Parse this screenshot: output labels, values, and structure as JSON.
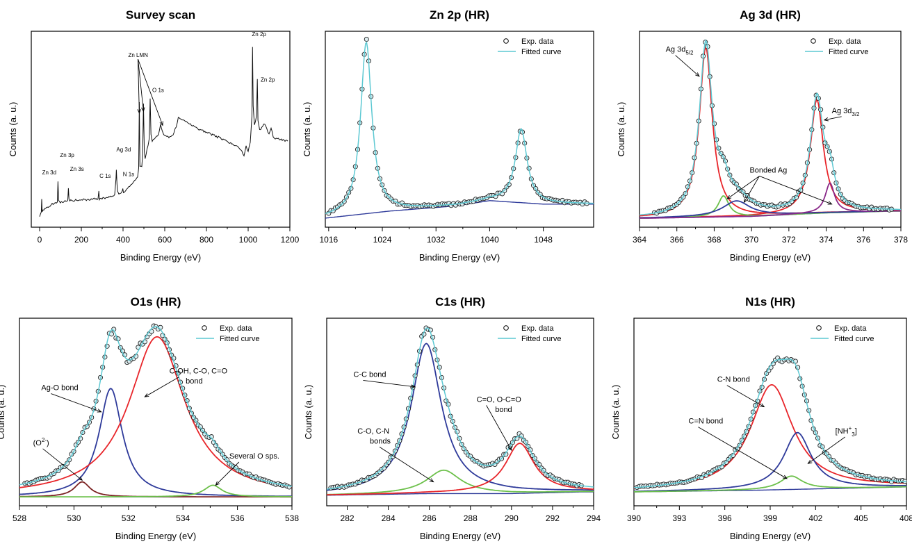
{
  "legend": {
    "exp": "Exp. data",
    "fit": "Fitted curve"
  },
  "colors": {
    "fit": "#5cc8d2",
    "red": "#e8252a",
    "blue": "#2e3a9a",
    "green": "#6cc04a",
    "purple": "#8a2a8a",
    "brown": "#7a2020",
    "marker": "#222222",
    "marker_fill": "#dfeff2"
  },
  "chart_data": [
    {
      "type": "line",
      "title": "Survey scan",
      "xlabel": "Binding Energy (eV)",
      "ylabel": "Counts (a. u.)",
      "xlim": [
        -40,
        1200
      ],
      "xticks": [
        0,
        200,
        400,
        600,
        800,
        1000,
        1200
      ],
      "legend": false,
      "series": [
        {
          "x": [
            0,
            8,
            10,
            12,
            20,
            60,
            85,
            88,
            91,
            95,
            135,
            138,
            141,
            145,
            280,
            284,
            287,
            290,
            360,
            366,
            368,
            371,
            374,
            380,
            396,
            399,
            402,
            408,
            470,
            475,
            478,
            481,
            490,
            494,
            498,
            502,
            506,
            520,
            526,
            530,
            534,
            540,
            570,
            580,
            588,
            595,
            620,
            640,
            655,
            665,
            700,
            760,
            820,
            880,
            930,
            960,
            980,
            990,
            1000,
            1010,
            1018,
            1021,
            1024,
            1030,
            1040,
            1044,
            1047,
            1055,
            1080,
            1100,
            1110,
            1120,
            1150,
            1190
          ],
          "y": [
            0.03,
            0.06,
            0.13,
            0.06,
            0.07,
            0.1,
            0.11,
            0.23,
            0.12,
            0.11,
            0.12,
            0.19,
            0.13,
            0.12,
            0.13,
            0.17,
            0.13,
            0.13,
            0.15,
            0.24,
            0.3,
            0.22,
            0.17,
            0.16,
            0.17,
            0.19,
            0.17,
            0.17,
            0.25,
            0.3,
            0.68,
            0.32,
            0.32,
            0.38,
            0.68,
            0.4,
            0.36,
            0.44,
            0.48,
            0.7,
            0.5,
            0.46,
            0.5,
            0.56,
            0.52,
            0.5,
            0.48,
            0.5,
            0.54,
            0.6,
            0.57,
            0.53,
            0.5,
            0.47,
            0.44,
            0.42,
            0.38,
            0.43,
            0.4,
            0.45,
            0.6,
            1.0,
            0.66,
            0.55,
            0.6,
            0.82,
            0.58,
            0.52,
            0.56,
            0.5,
            0.54,
            0.48,
            0.47,
            0.46
          ]
        }
      ],
      "annotations": [
        {
          "text": "Zn 3d",
          "x": 12,
          "y": 0.27,
          "marks": []
        },
        {
          "text": "Zn 3p",
          "x": 98,
          "y": 0.37,
          "marks": []
        },
        {
          "text": "Zn 3s",
          "x": 146,
          "y": 0.29,
          "marks": []
        },
        {
          "text": "C 1s",
          "x": 287,
          "y": 0.25,
          "marks": []
        },
        {
          "text": "Ag 3d",
          "x": 368,
          "y": 0.4,
          "marks": []
        },
        {
          "text": "N 1s",
          "x": 399,
          "y": 0.26,
          "marks": []
        },
        {
          "text": "Zn LMN",
          "x": 425,
          "y": 0.94,
          "marks": [
            [
              478,
              0.62
            ],
            [
              498,
              0.63
            ],
            [
              590,
              0.55
            ]
          ]
        },
        {
          "text": "O 1s",
          "x": 540,
          "y": 0.74,
          "marks": []
        },
        {
          "text": "Zn 2p",
          "x": 1018,
          "y": 1.06,
          "marks": []
        },
        {
          "text": "Zn 2p",
          "x": 1060,
          "y": 0.8,
          "marks": []
        }
      ]
    },
    {
      "type": "line",
      "title": "Zn 2p (HR)",
      "xlabel": "Binding Energy (eV)",
      "ylabel": "Counts (a. u.)",
      "xlim": [
        1015.5,
        1055.5
      ],
      "xticks": [
        1016,
        1024,
        1032,
        1040,
        1048
      ],
      "legend": true,
      "baseline": [
        [
          1015.5,
          0.02
        ],
        [
          1025,
          0.06
        ],
        [
          1035,
          0.09
        ],
        [
          1040,
          0.12
        ],
        [
          1048,
          0.1
        ],
        [
          1055,
          0.1
        ]
      ],
      "peaks": [
        {
          "center": 1021.6,
          "height": 0.98,
          "width": 1.0,
          "color": "fit"
        },
        {
          "center": 1044.7,
          "height": 0.42,
          "width": 1.05,
          "color": "fit"
        }
      ],
      "exp_range": [
        1016,
        1054.5
      ]
    },
    {
      "type": "line",
      "title": "Ag 3d (HR)",
      "xlabel": "Binding Energy (eV)",
      "ylabel": "Counts (a. u.)",
      "xlim": [
        364,
        378
      ],
      "xticks": [
        364,
        366,
        368,
        370,
        372,
        374,
        376,
        378
      ],
      "legend": true,
      "baseline": [
        [
          364.5,
          0.02
        ],
        [
          370,
          0.03
        ],
        [
          374,
          0.05
        ],
        [
          377.5,
          0.06
        ]
      ],
      "peaks": [
        {
          "center": 367.55,
          "height": 0.97,
          "width": 0.42,
          "color": "red"
        },
        {
          "center": 373.5,
          "height": 0.65,
          "width": 0.42,
          "color": "red"
        },
        {
          "center": 368.5,
          "height": 0.12,
          "width": 0.35,
          "color": "green"
        },
        {
          "center": 369.2,
          "height": 0.09,
          "width": 0.9,
          "color": "blue"
        },
        {
          "center": 374.2,
          "height": 0.17,
          "width": 0.3,
          "color": "purple"
        }
      ],
      "exp_range": [
        364.8,
        377.5
      ],
      "annotations": [
        {
          "text": "Ag 3d",
          "sub": "5/2",
          "x": 365.4,
          "y": 0.97,
          "marks": [
            [
              367.2,
              0.83
            ]
          ]
        },
        {
          "text": "Ag 3d",
          "sub": "3/2",
          "x": 374.3,
          "y": 0.62,
          "marks": [
            [
              373.9,
              0.58
            ]
          ]
        },
        {
          "text": "Bonded Ag",
          "x": 369.9,
          "y": 0.28,
          "marks": [
            [
              368.7,
              0.13
            ],
            [
              369.6,
              0.11
            ],
            [
              374.3,
              0.1
            ]
          ]
        }
      ]
    },
    {
      "type": "line",
      "title": "O1s (HR)",
      "xlabel": "Binding Energy (eV)",
      "ylabel": "Counts (a. u.)",
      "xlim": [
        528,
        538
      ],
      "xticks": [
        528,
        530,
        532,
        534,
        536,
        538
      ],
      "legend": true,
      "baseline": [
        [
          528.1,
          0.02
        ],
        [
          531,
          0.02
        ],
        [
          534,
          0.02
        ],
        [
          537.9,
          0.02
        ]
      ],
      "peaks": [
        {
          "center": 531.35,
          "height": 0.65,
          "width": 0.52,
          "color": "blue"
        },
        {
          "center": 533.05,
          "height": 0.96,
          "width": 1.25,
          "color": "red"
        },
        {
          "center": 530.3,
          "height": 0.09,
          "width": 0.35,
          "color": "brown"
        },
        {
          "center": 535.1,
          "height": 0.07,
          "width": 0.4,
          "color": "green"
        }
      ],
      "exp_range": [
        528.2,
        537.9
      ],
      "annotations": [
        {
          "text": "Ag-O bond",
          "x": 528.8,
          "y": 0.66,
          "marks": [
            [
              531.0,
              0.53
            ]
          ]
        },
        {
          "text": "C-OH, C-O, C=O",
          "x": 533.5,
          "y": 0.76,
          "marks": [
            [
              532.6,
              0.62
            ]
          ]
        },
        {
          "text": "bond",
          "x": 534.1,
          "y": 0.7,
          "marks": []
        },
        {
          "text": "(O",
          "sup": "2-",
          "x": 528.5,
          "y": 0.33,
          "marks": [
            [
              530.3,
              0.12
            ]
          ]
        },
        {
          "text": "Several O sps.",
          "x": 535.7,
          "y": 0.25,
          "marks": [
            [
              535.2,
              0.09
            ]
          ]
        }
      ]
    },
    {
      "type": "line",
      "title": "C1s (HR)",
      "xlabel": "Binding Energy (eV)",
      "ylabel": "Counts (a. u.)",
      "xlim": [
        281,
        294
      ],
      "xticks": [
        282,
        284,
        286,
        288,
        290,
        292,
        294
      ],
      "legend": true,
      "baseline": [
        [
          281.1,
          0.03
        ],
        [
          286,
          0.04
        ],
        [
          290,
          0.04
        ],
        [
          293.5,
          0.05
        ]
      ],
      "peaks": [
        {
          "center": 285.85,
          "height": 0.9,
          "width": 0.9,
          "color": "blue"
        },
        {
          "center": 286.7,
          "height": 0.14,
          "width": 1.0,
          "color": "green"
        },
        {
          "center": 290.4,
          "height": 0.3,
          "width": 0.85,
          "color": "red"
        }
      ],
      "exp_range": [
        281.2,
        293.4
      ],
      "annotations": [
        {
          "text": "C-C  bond",
          "x": 282.3,
          "y": 0.74,
          "marks": [
            [
              285.3,
              0.68
            ]
          ]
        },
        {
          "text": "C=O, O-C=O",
          "x": 288.3,
          "y": 0.59,
          "marks": [
            [
              290.0,
              0.3
            ]
          ]
        },
        {
          "text": "bond",
          "x": 289.2,
          "y": 0.53,
          "marks": []
        },
        {
          "text": "C-O, C-N",
          "x": 282.5,
          "y": 0.4,
          "marks": []
        },
        {
          "text": "bonds",
          "x": 283.1,
          "y": 0.34,
          "marks": [
            [
              286.2,
              0.11
            ]
          ]
        }
      ]
    },
    {
      "type": "line",
      "title": "N1s (HR)",
      "xlabel": "Binding Energy (eV)",
      "ylabel": "Counts (a. u.)",
      "xlim": [
        390,
        408
      ],
      "xticks": [
        390,
        393,
        396,
        399,
        402,
        405,
        408
      ],
      "legend": true,
      "baseline": [
        [
          390,
          0.05
        ],
        [
          398,
          0.06
        ],
        [
          403,
          0.07
        ],
        [
          408,
          0.08
        ]
      ],
      "peaks": [
        {
          "center": 399.1,
          "height": 0.63,
          "width": 1.7,
          "color": "red"
        },
        {
          "center": 400.8,
          "height": 0.34,
          "width": 1.1,
          "color": "blue"
        },
        {
          "center": 400.4,
          "height": 0.08,
          "width": 0.9,
          "color": "green"
        }
      ],
      "exp_range": [
        390.2,
        407.9
      ],
      "annotations": [
        {
          "text": "C-N bond",
          "x": 395.5,
          "y": 0.71,
          "marks": [
            [
              398.6,
              0.56
            ]
          ]
        },
        {
          "text": "C=N bond",
          "x": 393.6,
          "y": 0.46,
          "marks": [
            [
              400.1,
              0.13
            ]
          ]
        },
        {
          "text": "[NH",
          "sub": "3",
          "sup": "+",
          "tail": "]",
          "x": 403.3,
          "y": 0.4,
          "marks": [
            [
              401.5,
              0.22
            ]
          ]
        }
      ]
    }
  ]
}
